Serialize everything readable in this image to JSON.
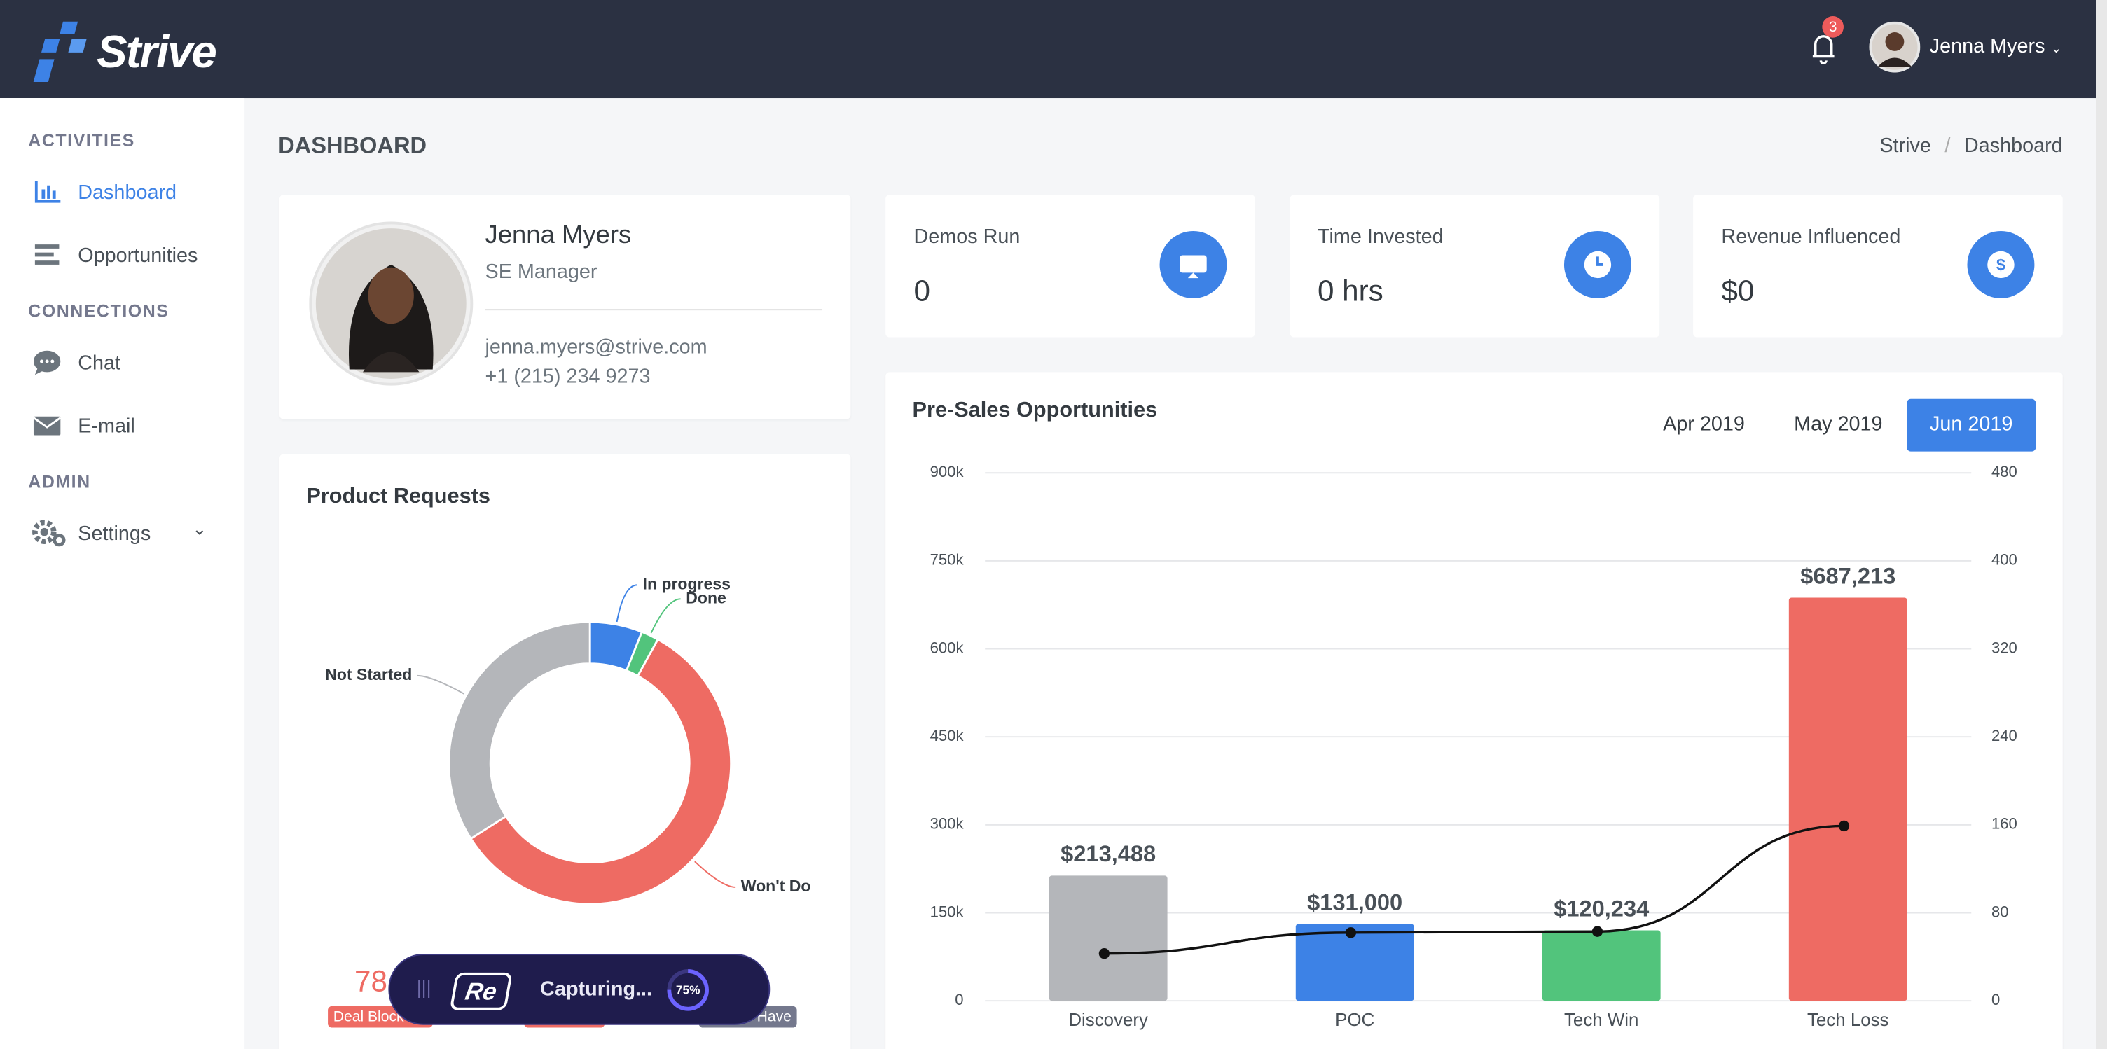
{
  "header": {
    "logo": "Strive",
    "notification_count": 3,
    "user": "Jenna Myers"
  },
  "sidebar": {
    "sections": [
      {
        "title": "ACTIVITIES",
        "items": [
          "Dashboard",
          "Opportunities"
        ]
      },
      {
        "title": "CONNECTIONS",
        "items": [
          "Chat",
          "E-mail"
        ]
      },
      {
        "title": "ADMIN",
        "items": [
          "Settings"
        ]
      }
    ],
    "active_item": "Dashboard"
  },
  "page": {
    "title": "DASHBOARD",
    "breadcrumb": [
      "Strive",
      "Dashboard"
    ]
  },
  "profile": {
    "name": "Jenna Myers",
    "role": "SE Manager",
    "email": "jenna.myers@strive.com",
    "phone": "+1 (215) 234 9273"
  },
  "stats": [
    {
      "label": "Demos Run",
      "value": "0"
    },
    {
      "label": "Time Invested",
      "value": "0 hrs"
    },
    {
      "label": "Revenue Influenced",
      "value": "$0"
    }
  ],
  "product_summary": {
    "value": "78",
    "labels": [
      "Deal Block",
      "Have"
    ]
  },
  "recorder": {
    "logo": "Re",
    "status": "Capturing...",
    "progress": 75,
    "progress_label": "75%"
  },
  "chart_data": [
    {
      "type": "pie",
      "donut": true,
      "title": "Product Requests",
      "categories": [
        "In progress",
        "Done",
        "Won't Do",
        "Not Started"
      ],
      "values": [
        6,
        2,
        58,
        34
      ],
      "colors": [
        "#3d82e6",
        "#52c47c",
        "#ee6b63",
        "#b4b6ba"
      ]
    },
    {
      "type": "bar",
      "title": "Pre-Sales Opportunities",
      "periods": [
        "Apr 2019",
        "May 2019",
        "Jun 2019"
      ],
      "active_period": "Jun 2019",
      "categories": [
        "Discovery",
        "POC",
        "Tech Win",
        "Tech Loss"
      ],
      "series": [
        {
          "type": "bar",
          "values": [
            213488,
            131000,
            120234,
            687213
          ],
          "value_labels": [
            "$213,488",
            "$131,000",
            "$120,234",
            "$687,213"
          ],
          "colors": [
            "#b4b6ba",
            "#3d82e6",
            "#52c47c",
            "#ee6b63"
          ]
        },
        {
          "type": "line",
          "axis": "y2",
          "values": [
            43,
            62,
            63,
            159
          ],
          "color": "#111111"
        }
      ],
      "ylim": [
        0,
        900000
      ],
      "yticks": [
        0,
        {
          "value": 150000,
          "label": "150k"
        },
        {
          "value": 300000,
          "label": "300k"
        },
        {
          "value": 450000,
          "label": "450k"
        },
        {
          "value": 600000,
          "label": "600k"
        },
        {
          "value": 750000,
          "label": "750k"
        },
        {
          "value": 900000,
          "label": "900k"
        }
      ],
      "y2lim": [
        0,
        480
      ],
      "y2ticks": [
        0,
        80,
        160,
        240,
        320,
        400,
        480
      ],
      "grid": true
    }
  ]
}
